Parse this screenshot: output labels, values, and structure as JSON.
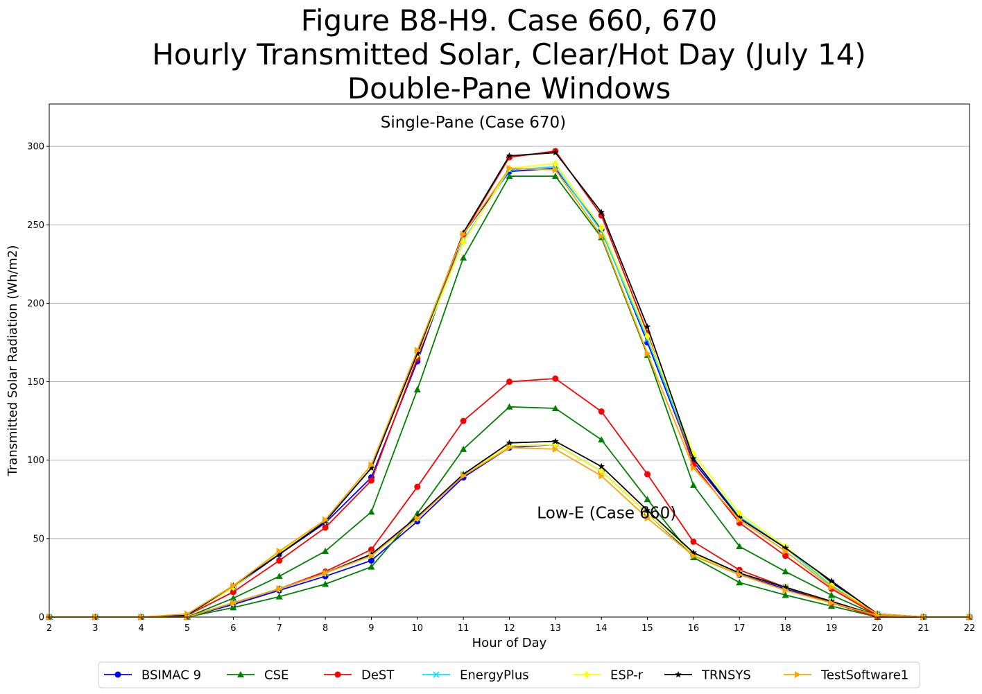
{
  "chart_data": {
    "type": "line",
    "title": [
      "Figure B8-H9. Case 660, 670",
      "Hourly Transmitted Solar, Clear/Hot Day (July 14)",
      "Double-Pane Windows"
    ],
    "xlabel": "Hour of Day",
    "ylabel": "Transmitted Solar Radiation (Wh/m2)",
    "xlim": [
      2,
      22
    ],
    "ylim": [
      0,
      327
    ],
    "xticks": [
      "2",
      "3",
      "4",
      "5",
      "6",
      "7",
      "8",
      "9",
      "10",
      "11",
      "12",
      "13",
      "14",
      "15",
      "16",
      "17",
      "18",
      "19",
      "20",
      "21",
      "22"
    ],
    "yticks": [
      "0",
      "50",
      "100",
      "150",
      "200",
      "250",
      "300"
    ],
    "grid": "horizontal",
    "legend_position": "bottom-center",
    "annotations": [
      {
        "text": "Single-Pane (Case 670)",
        "x": 9.2,
        "y": 312
      },
      {
        "text": "Low-E (Case 660)",
        "x": 12.6,
        "y": 63
      }
    ],
    "x": [
      2,
      3,
      4,
      5,
      6,
      7,
      8,
      9,
      10,
      11,
      12,
      13,
      14,
      15,
      16,
      17,
      18,
      19,
      20,
      21,
      22
    ],
    "groups": [
      {
        "case": "Single-Pane (Case 670)",
        "series": [
          {
            "name": "BSIMAC 9",
            "color": "#0000ff",
            "marker": "circle",
            "values": [
              0,
              0,
              0,
              1,
              19,
              40,
              60,
              89,
              163,
              244,
              284,
              286,
              247,
              175,
              99,
              63,
              44,
              22,
              2,
              0,
              0
            ]
          },
          {
            "name": "CSE",
            "color": "#008000",
            "marker": "triangle",
            "values": [
              0,
              0,
              0,
              0,
              12,
              26,
              42,
              67,
              145,
              229,
              281,
              281,
              242,
              167,
              84,
              45,
              29,
              14,
              1,
              0,
              0
            ]
          },
          {
            "name": "DeST",
            "color": "#ff0000",
            "marker": "circle",
            "values": [
              0,
              0,
              0,
              1,
              16,
              36,
              57,
              87,
              165,
              244,
              293,
              297,
              256,
              181,
              97,
              60,
              39,
              18,
              1,
              0,
              0
            ]
          },
          {
            "name": "EnergyPlus",
            "color": "#00e5ff",
            "marker": "x",
            "values": [
              0,
              0,
              0,
              1,
              19,
              41,
              61,
              95,
              168,
              240,
              285,
              287,
              246,
              177,
              101,
              64,
              44,
              20,
              2,
              0,
              0
            ]
          },
          {
            "name": "ESP-r",
            "color": "#ffff00",
            "marker": "diamond",
            "values": [
              0,
              0,
              0,
              1,
              19,
              41,
              61,
              95,
              167,
              239,
              286,
              289,
              248,
              179,
              104,
              66,
              45,
              21,
              2,
              0,
              0
            ]
          },
          {
            "name": "TRNSYS",
            "color": "#000000",
            "marker": "star",
            "values": [
              0,
              0,
              0,
              1,
              20,
              40,
              61,
              95,
              168,
              245,
              294,
              296,
              258,
              185,
              101,
              63,
              44,
              23,
              2,
              0,
              0
            ]
          },
          {
            "name": "TestSoftware1",
            "color": "#ffa500",
            "marker": "triangle-right",
            "values": [
              0,
              0,
              0,
              2,
              20,
              42,
              62,
              97,
              170,
              244,
              286,
              285,
              243,
              168,
              95,
              62,
              42,
              19,
              2,
              0,
              0
            ]
          }
        ]
      },
      {
        "case": "Low-E (Case 660)",
        "series": [
          {
            "name": "BSIMAC 9",
            "color": "#0000ff",
            "marker": "circle",
            "values": [
              0,
              0,
              0,
              0,
              8,
              17,
              26,
              36,
              61,
              89,
              108,
              110,
              93,
              66,
              39,
              27,
              18,
              9,
              1,
              0,
              0
            ]
          },
          {
            "name": "CSE",
            "color": "#008000",
            "marker": "triangle",
            "values": [
              0,
              0,
              0,
              0,
              6,
              13,
              21,
              32,
              66,
              107,
              134,
              133,
              113,
              75,
              38,
              22,
              14,
              7,
              0,
              0,
              0
            ]
          },
          {
            "name": "DeST",
            "color": "#ff0000",
            "marker": "circle",
            "values": [
              0,
              0,
              0,
              0,
              9,
              18,
              29,
              43,
              83,
              125,
              150,
              152,
              131,
              91,
              48,
              30,
              19,
              9,
              0,
              0,
              0
            ]
          },
          {
            "name": "EnergyPlus",
            "color": "#00e5ff",
            "marker": "x",
            "values": [
              0,
              0,
              0,
              0,
              9,
              18,
              28,
              40,
              63,
              91,
              109,
              110,
              93,
              66,
              40,
              28,
              19,
              10,
              1,
              0,
              0
            ]
          },
          {
            "name": "ESP-r",
            "color": "#ffff00",
            "marker": "diamond",
            "values": [
              0,
              0,
              0,
              0,
              9,
              18,
              28,
              40,
              63,
              91,
              109,
              110,
              93,
              66,
              40,
              28,
              19,
              10,
              1,
              0,
              0
            ]
          },
          {
            "name": "TRNSYS",
            "color": "#000000",
            "marker": "star",
            "values": [
              0,
              0,
              0,
              0,
              9,
              18,
              28,
              40,
              64,
              91,
              111,
              112,
              96,
              68,
              41,
              28,
              19,
              10,
              1,
              0,
              0
            ]
          },
          {
            "name": "TestSoftware1",
            "color": "#ffa500",
            "marker": "triangle-right",
            "values": [
              0,
              0,
              0,
              0,
              9,
              18,
              28,
              39,
              63,
              90,
              108,
              107,
              90,
              63,
              39,
              27,
              17,
              9,
              1,
              0,
              0
            ]
          }
        ]
      }
    ]
  }
}
